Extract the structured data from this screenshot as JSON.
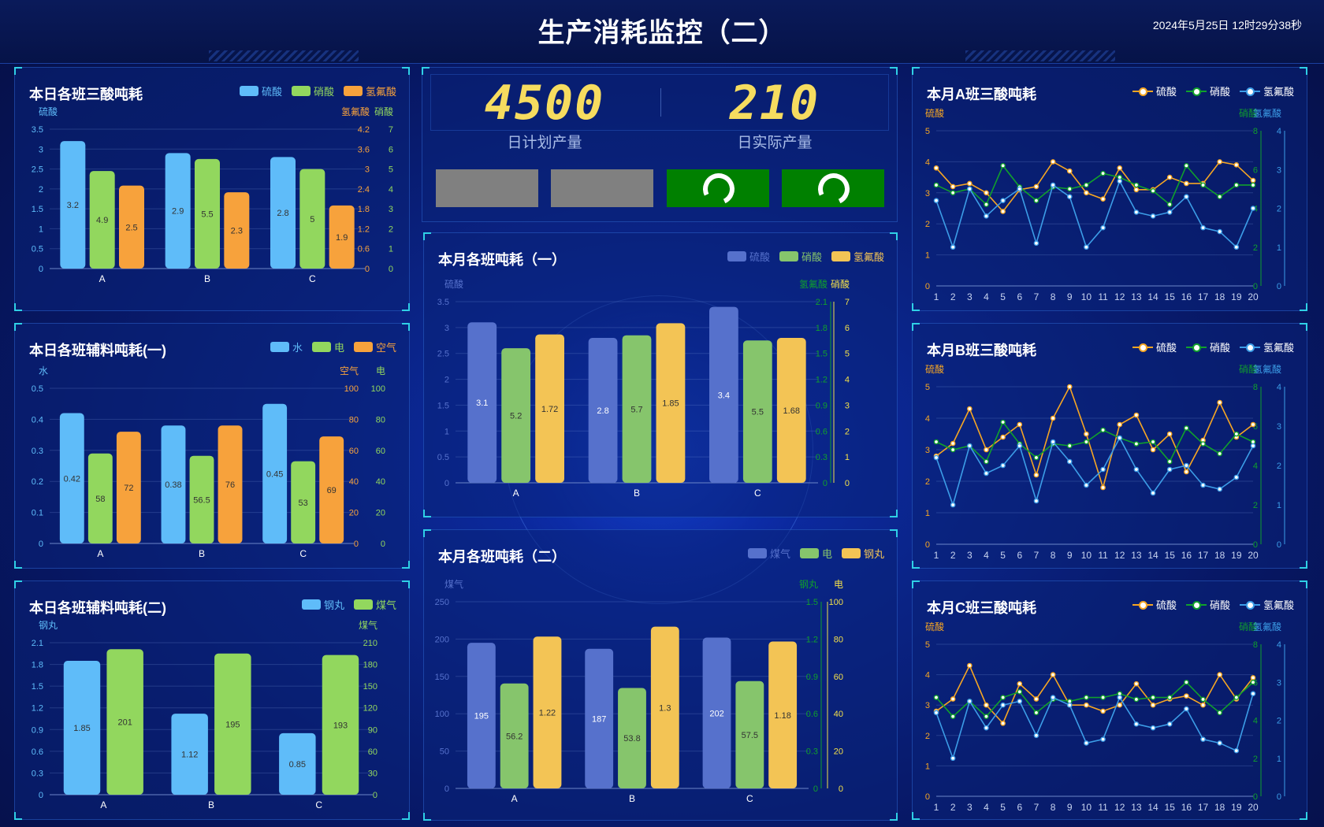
{
  "header": {
    "title": "生产消耗监控（二）",
    "datetime": "2024年5月25日 12时29分38秒"
  },
  "kpi": {
    "plan_value": "4500",
    "plan_label": "日计划产量",
    "actual_value": "210",
    "actual_label": "日实际产量"
  },
  "buttons": [
    {
      "state": "idle",
      "color": "#808080"
    },
    {
      "state": "idle",
      "color": "#808080"
    },
    {
      "state": "loading",
      "color": "#008000",
      "icon": "refresh-icon"
    },
    {
      "state": "loading",
      "color": "#008000",
      "icon": "refresh-icon"
    }
  ],
  "colors": {
    "blue": "#5fbcf9",
    "green": "#92d75e",
    "orange": "#f7a23c",
    "indigo": "#5671cc",
    "lgreen": "#86c56c",
    "yellow": "#f3c455",
    "line_orange": "#f6a623",
    "line_green": "#10a02c",
    "line_blue": "#3c9de7"
  },
  "panels": [
    {
      "id": "daily-acid",
      "title": "本日各班三酸吨耗",
      "legend": [
        {
          "label": "硫酸",
          "color": "#5fbcf9"
        },
        {
          "label": "硝酸",
          "color": "#92d75e"
        },
        {
          "label": "氢氟酸",
          "color": "#f7a23c"
        }
      ],
      "chart_data": {
        "type": "bar",
        "categories": [
          "A",
          "B",
          "C"
        ],
        "axes": [
          {
            "side": "left",
            "name": "硫酸",
            "max": 3.5,
            "ticks": [
              "0",
              "0.5",
              "1",
              "1.5",
              "2",
              "2.5",
              "3",
              "3.5"
            ],
            "color": "#5fbcf9"
          },
          {
            "side": "right",
            "name": "氢氟酸",
            "max": 4.2,
            "ticks": [
              "0",
              "0.6",
              "1.2",
              "1.8",
              "2.4",
              "3",
              "3.6",
              "4.2"
            ],
            "color": "#f7a23c"
          },
          {
            "side": "right2",
            "name": "硝酸",
            "max": 7,
            "ticks": [
              "0",
              "1",
              "2",
              "3",
              "4",
              "5",
              "6",
              "7"
            ],
            "color": "#92d75e"
          }
        ],
        "series": [
          {
            "name": "硫酸",
            "axis": 0,
            "color": "#5fbcf9",
            "values": [
              3.2,
              2.9,
              2.8
            ]
          },
          {
            "name": "硝酸",
            "axis": 2,
            "color": "#92d75e",
            "values": [
              4.9,
              5.5,
              5
            ]
          },
          {
            "name": "氢氟酸",
            "axis": 1,
            "color": "#f7a23c",
            "values": [
              2.5,
              2.3,
              1.9
            ]
          }
        ]
      }
    },
    {
      "id": "daily-aux1",
      "title": "本日各班辅料吨耗(一)",
      "legend": [
        {
          "label": "水",
          "color": "#5fbcf9"
        },
        {
          "label": "电",
          "color": "#92d75e"
        },
        {
          "label": "空气",
          "color": "#f7a23c"
        }
      ],
      "chart_data": {
        "type": "bar",
        "categories": [
          "A",
          "B",
          "C"
        ],
        "axes": [
          {
            "side": "left",
            "name": "水",
            "max": 0.5,
            "ticks": [
              "0",
              "0.1",
              "0.2",
              "0.3",
              "0.4",
              "0.5"
            ],
            "color": "#5fbcf9"
          },
          {
            "side": "right",
            "name": "空气",
            "max": 100,
            "ticks": [
              "0",
              "20",
              "40",
              "60",
              "80",
              "100"
            ],
            "color": "#f7a23c"
          },
          {
            "side": "right2",
            "name": "电",
            "max": 100,
            "ticks": [
              "0",
              "20",
              "40",
              "60",
              "80",
              "100"
            ],
            "color": "#92d75e"
          }
        ],
        "series": [
          {
            "name": "水",
            "axis": 0,
            "color": "#5fbcf9",
            "values": [
              0.42,
              0.38,
              0.45
            ]
          },
          {
            "name": "电",
            "axis": 2,
            "color": "#92d75e",
            "values": [
              58,
              56.5,
              53
            ]
          },
          {
            "name": "空气",
            "axis": 1,
            "color": "#f7a23c",
            "values": [
              72,
              76,
              69
            ]
          }
        ]
      }
    },
    {
      "id": "daily-aux2",
      "title": "本日各班辅料吨耗(二)",
      "legend": [
        {
          "label": "钢丸",
          "color": "#5fbcf9"
        },
        {
          "label": "煤气",
          "color": "#92d75e"
        }
      ],
      "chart_data": {
        "type": "bar",
        "categories": [
          "A",
          "B",
          "C"
        ],
        "axes": [
          {
            "side": "left",
            "name": "钢丸",
            "max": 2.1,
            "ticks": [
              "0",
              "0.3",
              "0.6",
              "0.9",
              "1.2",
              "1.5",
              "1.8",
              "2.1"
            ],
            "color": "#5fbcf9"
          },
          {
            "side": "right",
            "name": "煤气",
            "max": 210,
            "ticks": [
              "0",
              "30",
              "60",
              "90",
              "120",
              "150",
              "180",
              "210"
            ],
            "color": "#92d75e"
          }
        ],
        "series": [
          {
            "name": "钢丸",
            "axis": 0,
            "color": "#5fbcf9",
            "values": [
              1.85,
              1.12,
              0.85
            ]
          },
          {
            "name": "煤气",
            "axis": 1,
            "color": "#92d75e",
            "values": [
              201,
              195,
              193
            ]
          }
        ]
      }
    },
    {
      "id": "monthly-1",
      "title": "本月各班吨耗（一）",
      "legend": [
        {
          "label": "硫酸",
          "color": "#5671cc"
        },
        {
          "label": "硝酸",
          "color": "#86c56c"
        },
        {
          "label": "氢氟酸",
          "color": "#f3c455"
        }
      ],
      "chart_data": {
        "type": "bar",
        "categories": [
          "A",
          "B",
          "C"
        ],
        "axes": [
          {
            "side": "left",
            "name": "硫酸",
            "max": 3.5,
            "ticks": [
              "0",
              "0.5",
              "1",
              "1.5",
              "2",
              "2.5",
              "3",
              "3.5"
            ],
            "color": "#5671cc"
          },
          {
            "side": "right",
            "name": "氢氟酸",
            "max": 2.1,
            "ticks": [
              "0",
              "0.3",
              "0.6",
              "0.9",
              "1.2",
              "1.5",
              "1.8",
              "2.1"
            ],
            "color": "#10a02c"
          },
          {
            "side": "right2",
            "name": "硝酸",
            "max": 7,
            "ticks": [
              "0",
              "1",
              "2",
              "3",
              "4",
              "5",
              "6",
              "7"
            ],
            "color": "#f3e04a"
          }
        ],
        "series": [
          {
            "name": "硫酸",
            "axis": 0,
            "color": "#5671cc",
            "values": [
              3.1,
              2.8,
              3.4
            ]
          },
          {
            "name": "硝酸",
            "axis": 2,
            "color": "#86c56c",
            "values": [
              5.2,
              5.7,
              5.5
            ]
          },
          {
            "name": "氢氟酸",
            "axis": 1,
            "color": "#f3c455",
            "values": [
              1.72,
              1.85,
              1.68
            ]
          }
        ]
      }
    },
    {
      "id": "monthly-2",
      "title": "本月各班吨耗（二）",
      "legend": [
        {
          "label": "煤气",
          "color": "#5671cc"
        },
        {
          "label": "电",
          "color": "#86c56c"
        },
        {
          "label": "钢丸",
          "color": "#f3c455"
        }
      ],
      "chart_data": {
        "type": "bar",
        "categories": [
          "A",
          "B",
          "C"
        ],
        "axes": [
          {
            "side": "left",
            "name": "煤气",
            "max": 250,
            "ticks": [
              "0",
              "50",
              "100",
              "150",
              "200",
              "250"
            ],
            "color": "#5671cc"
          },
          {
            "side": "right",
            "name": "钢丸",
            "max": 1.5,
            "ticks": [
              "0",
              "0.3",
              "0.6",
              "0.9",
              "1.2",
              "1.5"
            ],
            "color": "#10a02c"
          },
          {
            "side": "right2",
            "name": "电",
            "max": 100,
            "ticks": [
              "0",
              "20",
              "40",
              "60",
              "80",
              "100"
            ],
            "color": "#f3e04a"
          }
        ],
        "series": [
          {
            "name": "煤气",
            "axis": 0,
            "color": "#5671cc",
            "values": [
              195,
              187,
              202
            ]
          },
          {
            "name": "电",
            "axis": 2,
            "color": "#86c56c",
            "values": [
              56.2,
              53.8,
              57.5
            ]
          },
          {
            "name": "钢丸",
            "axis": 1,
            "color": "#f3c455",
            "values": [
              1.22,
              1.3,
              1.18
            ]
          }
        ]
      }
    },
    {
      "id": "monthly-a",
      "title": "本月A班三酸吨耗",
      "legend": [
        {
          "label": "硫酸",
          "color": "#f6a623"
        },
        {
          "label": "硝酸",
          "color": "#10a02c"
        },
        {
          "label": "氢氟酸",
          "color": "#3c9de7"
        }
      ],
      "chart_data": {
        "type": "line",
        "x": [
          "1",
          "2",
          "3",
          "4",
          "5",
          "6",
          "7",
          "8",
          "9",
          "10",
          "11",
          "12",
          "13",
          "14",
          "15",
          "16",
          "17",
          "18",
          "19",
          "20"
        ],
        "axes": [
          {
            "side": "left",
            "name": "硫酸",
            "max": 5,
            "ticks": [
              "0",
              "1",
              "2",
              "3",
              "4",
              "5"
            ],
            "color": "#f6a623"
          },
          {
            "side": "right",
            "name": "硝酸",
            "max": 8,
            "ticks": [
              "0",
              "2",
              "4",
              "6",
              "8"
            ],
            "color": "#10a02c"
          },
          {
            "side": "right2",
            "name": "氢氟酸",
            "max": 4,
            "ticks": [
              "0",
              "1",
              "2",
              "3",
              "4"
            ],
            "color": "#3c9de7"
          }
        ],
        "series": [
          {
            "name": "硫酸",
            "axis": 0,
            "color": "#f6a623",
            "values": [
              3.8,
              3.2,
              3.3,
              3.0,
              2.4,
              3.1,
              3.2,
              4.0,
              3.7,
              3.0,
              2.8,
              3.8,
              3.1,
              3.1,
              3.5,
              3.3,
              3.3,
              4.0,
              3.9,
              3.4
            ]
          },
          {
            "name": "硝酸",
            "axis": 1,
            "color": "#10a02c",
            "values": [
              5.2,
              4.8,
              5.0,
              4.2,
              6.2,
              5.1,
              4.4,
              5.1,
              5.0,
              5.2,
              5.8,
              5.6,
              5.2,
              4.9,
              4.2,
              6.2,
              5.2,
              4.6,
              5.2,
              5.2
            ]
          },
          {
            "name": "氢氟酸",
            "axis": 2,
            "color": "#3c9de7",
            "values": [
              2.2,
              1.0,
              2.5,
              1.8,
              2.2,
              2.5,
              1.1,
              2.6,
              2.3,
              1.0,
              1.5,
              2.7,
              1.9,
              1.8,
              1.9,
              2.3,
              1.5,
              1.4,
              1.0,
              2.0
            ]
          }
        ]
      }
    },
    {
      "id": "monthly-b",
      "title": "本月B班三酸吨耗",
      "legend": [
        {
          "label": "硫酸",
          "color": "#f6a623"
        },
        {
          "label": "硝酸",
          "color": "#10a02c"
        },
        {
          "label": "氢氟酸",
          "color": "#3c9de7"
        }
      ],
      "chart_data": {
        "type": "line",
        "x": [
          "1",
          "2",
          "3",
          "4",
          "5",
          "6",
          "7",
          "8",
          "9",
          "10",
          "11",
          "12",
          "13",
          "14",
          "15",
          "16",
          "17",
          "18",
          "19",
          "20"
        ],
        "axes": [
          {
            "side": "left",
            "name": "硫酸",
            "max": 5,
            "ticks": [
              "0",
              "1",
              "2",
              "3",
              "4",
              "5"
            ],
            "color": "#f6a623"
          },
          {
            "side": "right",
            "name": "硝酸",
            "max": 8,
            "ticks": [
              "0",
              "2",
              "4",
              "6",
              "8"
            ],
            "color": "#10a02c"
          },
          {
            "side": "right2",
            "name": "氢氟酸",
            "max": 4,
            "ticks": [
              "0",
              "1",
              "2",
              "3",
              "4"
            ],
            "color": "#3c9de7"
          }
        ],
        "series": [
          {
            "name": "硫酸",
            "axis": 0,
            "color": "#f6a623",
            "values": [
              2.8,
              3.2,
              4.3,
              3.0,
              3.4,
              3.8,
              2.2,
              4.0,
              5.0,
              3.5,
              1.8,
              3.8,
              4.1,
              3.0,
              3.5,
              2.3,
              3.3,
              4.5,
              3.4,
              3.8
            ]
          },
          {
            "name": "硝酸",
            "axis": 1,
            "color": "#10a02c",
            "values": [
              5.2,
              4.8,
              5.0,
              4.2,
              6.2,
              5.1,
              4.4,
              5.1,
              5.0,
              5.2,
              5.8,
              5.4,
              5.1,
              5.2,
              4.2,
              5.9,
              5.1,
              4.6,
              5.6,
              5.2
            ]
          },
          {
            "name": "氢氟酸",
            "axis": 2,
            "color": "#3c9de7",
            "values": [
              2.2,
              1.0,
              2.5,
              1.8,
              2.0,
              2.5,
              1.1,
              2.6,
              2.1,
              1.5,
              1.9,
              2.7,
              1.9,
              1.3,
              1.9,
              2.0,
              1.5,
              1.4,
              1.7,
              2.5
            ]
          }
        ]
      }
    },
    {
      "id": "monthly-c",
      "title": "本月C班三酸吨耗",
      "legend": [
        {
          "label": "硫酸",
          "color": "#f6a623"
        },
        {
          "label": "硝酸",
          "color": "#10a02c"
        },
        {
          "label": "氢氟酸",
          "color": "#3c9de7"
        }
      ],
      "chart_data": {
        "type": "line",
        "x": [
          "1",
          "2",
          "3",
          "4",
          "5",
          "6",
          "7",
          "8",
          "9",
          "10",
          "11",
          "12",
          "13",
          "14",
          "15",
          "16",
          "17",
          "18",
          "19",
          "20"
        ],
        "axes": [
          {
            "side": "left",
            "name": "硫酸",
            "max": 5,
            "ticks": [
              "0",
              "1",
              "2",
              "3",
              "4",
              "5"
            ],
            "color": "#f6a623"
          },
          {
            "side": "right",
            "name": "硝酸",
            "max": 8,
            "ticks": [
              "0",
              "2",
              "4",
              "6",
              "8"
            ],
            "color": "#10a02c"
          },
          {
            "side": "right2",
            "name": "氢氟酸",
            "max": 4,
            "ticks": [
              "0",
              "1",
              "2",
              "3",
              "4"
            ],
            "color": "#3c9de7"
          }
        ],
        "series": [
          {
            "name": "硫酸",
            "axis": 0,
            "color": "#f6a623",
            "values": [
              2.8,
              3.2,
              4.3,
              3.0,
              2.4,
              3.7,
              3.2,
              4.0,
              3.0,
              3.0,
              2.8,
              3.0,
              3.7,
              3.0,
              3.2,
              3.3,
              3.0,
              4.0,
              3.2,
              3.9
            ]
          },
          {
            "name": "硝酸",
            "axis": 1,
            "color": "#10a02c",
            "values": [
              5.2,
              4.2,
              5.0,
              4.2,
              5.2,
              5.5,
              4.4,
              5.1,
              5.0,
              5.2,
              5.2,
              5.4,
              5.1,
              5.2,
              5.2,
              6.0,
              5.1,
              4.4,
              5.2,
              6.0
            ]
          },
          {
            "name": "氢氟酸",
            "axis": 2,
            "color": "#3c9de7",
            "values": [
              2.2,
              1.0,
              2.5,
              1.8,
              2.4,
              2.5,
              1.6,
              2.6,
              2.4,
              1.4,
              1.5,
              2.6,
              1.9,
              1.8,
              1.9,
              2.3,
              1.5,
              1.4,
              1.2,
              2.7
            ]
          }
        ]
      }
    }
  ]
}
